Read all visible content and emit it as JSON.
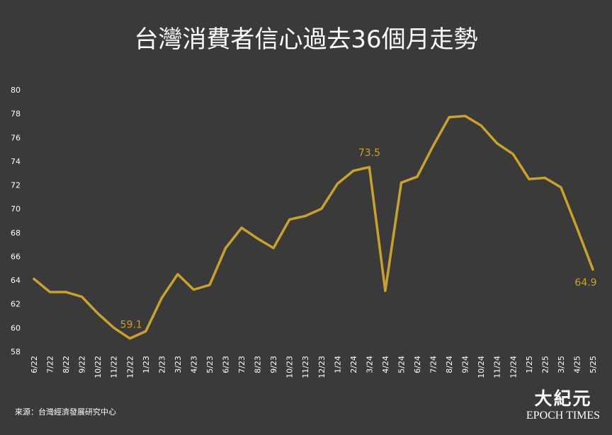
{
  "colors": {
    "background": "#3a3a3a",
    "line": "#c9a227",
    "text": "#ffffff"
  },
  "source": "來源：台灣經濟發展研究中心",
  "logo": {
    "cn": "大紀元",
    "en": "EPOCH TIMES"
  },
  "chart_data": {
    "type": "line",
    "title": "台灣消費者信心過去36個月走勢",
    "xlabel": "",
    "ylabel": "",
    "ylim": [
      58,
      80
    ],
    "yticks": [
      58,
      60,
      62,
      64,
      66,
      68,
      70,
      72,
      74,
      76,
      78,
      80
    ],
    "grid": false,
    "categories": [
      "6/22",
      "7/22",
      "8/22",
      "9/22",
      "10/22",
      "11/22",
      "12/22",
      "1/23",
      "2/23",
      "3/23",
      "4/23",
      "5/23",
      "6/23",
      "7/23",
      "8/23",
      "9/23",
      "10/23",
      "11/23",
      "12/23",
      "1/24",
      "2/24",
      "3/24",
      "4/24",
      "5/24",
      "6/24",
      "7/24",
      "8/24",
      "9/24",
      "10/24",
      "11/24",
      "12/24",
      "1/25",
      "2/25",
      "3/25",
      "4/25",
      "5/25"
    ],
    "series": [
      {
        "values": [
          64.1,
          63.0,
          63.0,
          62.6,
          61.2,
          60.0,
          59.1,
          59.7,
          62.5,
          64.5,
          63.2,
          63.6,
          66.7,
          68.4,
          67.5,
          66.7,
          69.1,
          69.4,
          70.0,
          72.1,
          73.2,
          73.5,
          63.1,
          72.2,
          72.7,
          75.3,
          77.7,
          77.8,
          77.0,
          75.5,
          74.6,
          72.5,
          72.6,
          71.8,
          68.4,
          64.9
        ]
      }
    ],
    "annotations": [
      {
        "index": 6,
        "label": "59.1"
      },
      {
        "index": 21,
        "label": "73.5"
      },
      {
        "index": 35,
        "label": "64.9"
      }
    ]
  }
}
